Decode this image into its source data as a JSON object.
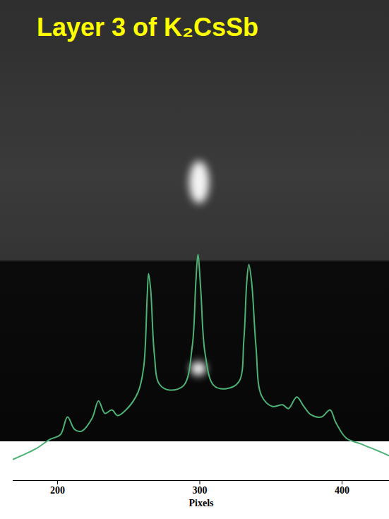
{
  "chart_data": {
    "type": "line",
    "title": "Layer 3 of K₂CsSb",
    "x_label": "Pixels",
    "x": [
      168.7,
      184.6,
      194.5,
      202.0,
      207.0,
      212.0,
      216.9,
      224.3,
      228.8,
      233.3,
      238.2,
      242.2,
      248.1,
      256.6,
      260.5,
      263.0,
      264.0,
      265.5,
      268.0,
      271.5,
      278.9,
      288.8,
      294.7,
      297.2,
      298.7,
      300.7,
      303.7,
      309.7,
      318.6,
      327.5,
      331.0,
      333.0,
      334.5,
      336.5,
      339.5,
      343.4,
      350.9,
      358.3,
      362.3,
      368.2,
      373.2,
      378.2,
      385.6,
      391.6,
      395.5,
      403.0,
      412.9,
      422.8,
      433.3
    ],
    "values": [
      7.9,
      11.8,
      15.3,
      17.1,
      23.7,
      19.0,
      18.4,
      23.2,
      29.7,
      25.0,
      26.3,
      24.2,
      26.3,
      32.9,
      42.0,
      68.4,
      77.1,
      71.0,
      47.4,
      36.0,
      33.7,
      35.5,
      50.0,
      73.7,
      84.2,
      71.0,
      47.4,
      35.5,
      34.2,
      36.8,
      52.6,
      73.7,
      80.5,
      73.7,
      50.0,
      31.6,
      27.6,
      28.2,
      26.8,
      31.1,
      27.6,
      24.5,
      23.7,
      26.3,
      21.8,
      15.8,
      13.7,
      11.6,
      9.2
    ],
    "color": "#4cb276",
    "xlim": [
      168.7,
      433.3
    ],
    "xticks": [
      200,
      300,
      400
    ],
    "ylim": [
      0,
      100
    ],
    "tick_labels": "x",
    "grid": false
  }
}
